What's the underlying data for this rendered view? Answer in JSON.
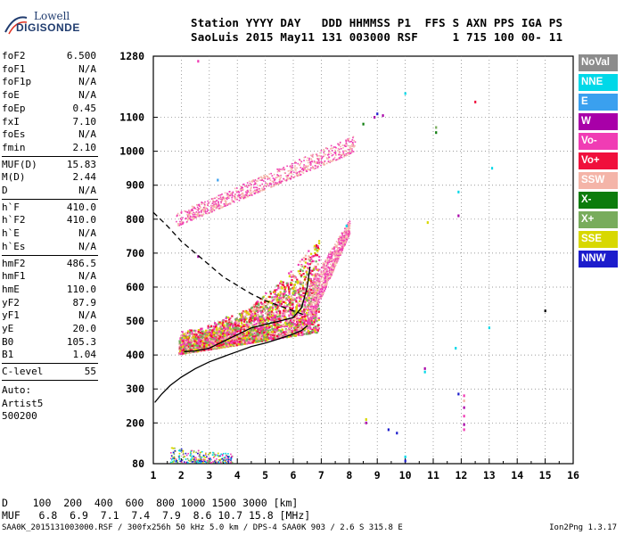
{
  "logo": {
    "line1": "Lowell",
    "line2": "DIGISONDE"
  },
  "header": {
    "line1": "Station YYYY DAY   DDD HHMMSS P1  FFS S AXN PPS IGA PS",
    "line2": "SaoLuis 2015 May11 131 003000 RSF     1 715 100 00- 11"
  },
  "params": [
    {
      "label": "foF2",
      "value": "6.500"
    },
    {
      "label": "foF1",
      "value": "N/A"
    },
    {
      "label": "foF1p",
      "value": "N/A"
    },
    {
      "label": "foE",
      "value": "N/A"
    },
    {
      "label": "foEp",
      "value": "0.45"
    },
    {
      "label": "fxI",
      "value": "7.10"
    },
    {
      "label": "foEs",
      "value": "N/A"
    },
    {
      "label": "fmin",
      "value": "2.10"
    },
    {
      "label": "MUF(D)",
      "value": "15.83"
    },
    {
      "label": "M(D)",
      "value": "2.44"
    },
    {
      "label": "D",
      "value": "N/A"
    },
    {
      "label": "h`F",
      "value": "410.0"
    },
    {
      "label": "h`F2",
      "value": "410.0"
    },
    {
      "label": "h`E",
      "value": "N/A"
    },
    {
      "label": "h`Es",
      "value": "N/A"
    },
    {
      "label": "hmF2",
      "value": "486.5"
    },
    {
      "label": "hmF1",
      "value": "N/A"
    },
    {
      "label": "hmE",
      "value": "110.0"
    },
    {
      "label": "yF2",
      "value": "87.9"
    },
    {
      "label": "yF1",
      "value": "N/A"
    },
    {
      "label": "yE",
      "value": "20.0"
    },
    {
      "label": "B0",
      "value": "105.3"
    },
    {
      "label": "B1",
      "value": "1.04"
    },
    {
      "label": "C-level",
      "value": "55"
    }
  ],
  "auto": {
    "line1": "Auto:",
    "line2": "Artist5",
    "line3": "500200"
  },
  "legend": [
    {
      "label": "NoVal",
      "color": "#8c8c8c"
    },
    {
      "label": "NNE",
      "color": "#00d8e8"
    },
    {
      "label": "E",
      "color": "#3aa0ef"
    },
    {
      "label": "W",
      "color": "#a800a8"
    },
    {
      "label": "Vo-",
      "color": "#f03cb4"
    },
    {
      "label": "Vo+",
      "color": "#f0103c"
    },
    {
      "label": "SSW",
      "color": "#f4b4a8"
    },
    {
      "label": "X-",
      "color": "#0c7c0c"
    },
    {
      "label": "X+",
      "color": "#78ac5c"
    },
    {
      "label": "SSE",
      "color": "#d8d800"
    },
    {
      "label": "NNW",
      "color": "#1c1ccc"
    }
  ],
  "bottom": {
    "d_row": "D    100  200  400  600  800 1000 1500 3000 [km]",
    "muf_row": "MUF   6.8  6.9  7.1  7.4  7.9  8.6 10.7 15.8 [MHz]",
    "footer": "SAA0K_2015131003000.RSF / 300fx256h 50 kHz 5.0 km / DPS-4 SAA0K 903 / 2.6 S 315.8 E",
    "version": "Ion2Png 1.3.17"
  },
  "chart_data": {
    "type": "scatter",
    "title": "",
    "xlabel": "",
    "ylabel": "",
    "xlim": [
      1,
      16
    ],
    "ylim": [
      80,
      1280
    ],
    "xticks": [
      1,
      2,
      3,
      4,
      5,
      6,
      7,
      8,
      9,
      10,
      11,
      12,
      13,
      14,
      15,
      16
    ],
    "yticks": [
      80,
      200,
      300,
      400,
      500,
      600,
      700,
      800,
      900,
      1000,
      1100,
      1280
    ],
    "grid": "dotted",
    "legend_position": "right",
    "series": [
      {
        "legend_label": "profile",
        "color": "#000000",
        "style": "solid",
        "points": [
          [
            1.05,
            260
          ],
          [
            1.3,
            285
          ],
          [
            1.6,
            310
          ],
          [
            2.0,
            335
          ],
          [
            2.5,
            360
          ],
          [
            3.0,
            380
          ],
          [
            3.5,
            395
          ],
          [
            4.0,
            410
          ],
          [
            4.5,
            425
          ],
          [
            5.0,
            435
          ],
          [
            5.5,
            448
          ],
          [
            6.0,
            462
          ],
          [
            6.3,
            472
          ],
          [
            6.5,
            486.5
          ]
        ]
      },
      {
        "legend_label": "muf-line",
        "color": "#000000",
        "style": "dashed",
        "points": [
          [
            1.0,
            820
          ],
          [
            1.5,
            780
          ],
          [
            2.0,
            735
          ],
          [
            2.5,
            700
          ],
          [
            3.0,
            665
          ],
          [
            3.5,
            630
          ],
          [
            4.0,
            605
          ],
          [
            4.5,
            580
          ],
          [
            5.0,
            560
          ],
          [
            5.5,
            545
          ],
          [
            6.0,
            530
          ],
          [
            6.4,
            518
          ]
        ]
      },
      {
        "legend_label": "trace-virtual",
        "color": "#000000",
        "style": "solid",
        "points": [
          [
            2.1,
            410
          ],
          [
            2.5,
            412
          ],
          [
            3.0,
            420
          ],
          [
            3.5,
            440
          ],
          [
            4.0,
            460
          ],
          [
            4.5,
            480
          ],
          [
            5.0,
            490
          ],
          [
            5.5,
            500
          ],
          [
            6.0,
            510
          ],
          [
            6.3,
            540
          ],
          [
            6.5,
            600
          ],
          [
            6.6,
            660
          ]
        ]
      }
    ],
    "echo_regions": [
      {
        "name": "F-trace main",
        "color_mix": [
          "#f03cb4",
          "#f0103c",
          "#d8d800",
          "#78ac5c",
          "#f4b4a8"
        ],
        "x_from": 1.9,
        "x_to": 6.9,
        "h_low_start": 405,
        "h_low_end": 470,
        "h_high_start": 480,
        "h_high_end": 700
      },
      {
        "name": "F-trace upper",
        "color_mix": [
          "#f4b4a8",
          "#f03cb4"
        ],
        "x_from": 6.5,
        "x_to": 8.0,
        "h_low_start": 480,
        "h_high_start": 600,
        "h_low_end": 760,
        "h_high_end": 800
      },
      {
        "name": "2nd hop",
        "color_mix": [
          "#f4b4a8",
          "#f03cb4"
        ],
        "x_from": 1.8,
        "x_to": 8.2,
        "h_low_start": 780,
        "h_low_end": 1000,
        "h_high_start": 820,
        "h_high_end": 1050
      },
      {
        "name": "E-region",
        "color_mix": [
          "#1c1ccc",
          "#d8d800",
          "#f03cb4",
          "#00d8e8",
          "#78ac5c"
        ],
        "x_from": 1.6,
        "x_to": 3.8,
        "h_low_start": 85,
        "h_low_end": 85,
        "h_high_start": 130,
        "h_high_end": 110
      }
    ],
    "isolated_points": [
      {
        "x": 2.6,
        "y": 1265,
        "color": "#f03cb4"
      },
      {
        "x": 3.3,
        "y": 915,
        "color": "#3aa0ef"
      },
      {
        "x": 8.9,
        "y": 1100,
        "color": "#a800a8"
      },
      {
        "x": 9.0,
        "y": 1110,
        "color": "#1c1ccc"
      },
      {
        "x": 9.2,
        "y": 1105,
        "color": "#a800a8"
      },
      {
        "x": 10.0,
        "y": 1170,
        "color": "#00d8e8"
      },
      {
        "x": 11.1,
        "y": 1070,
        "color": "#78ac5c"
      },
      {
        "x": 11.1,
        "y": 1055,
        "color": "#0c7c0c"
      },
      {
        "x": 11.9,
        "y": 880,
        "color": "#00d8e8"
      },
      {
        "x": 11.9,
        "y": 810,
        "color": "#a800a8"
      },
      {
        "x": 12.5,
        "y": 1145,
        "color": "#f0103c"
      },
      {
        "x": 13.1,
        "y": 950,
        "color": "#00d8e8"
      },
      {
        "x": 15.0,
        "y": 530,
        "color": "#000000"
      },
      {
        "x": 13.0,
        "y": 480,
        "color": "#00d8e8"
      },
      {
        "x": 11.8,
        "y": 420,
        "color": "#00d8e8"
      },
      {
        "x": 10.7,
        "y": 360,
        "color": "#a800a8"
      },
      {
        "x": 10.7,
        "y": 350,
        "color": "#00d8e8"
      },
      {
        "x": 11.9,
        "y": 285,
        "color": "#1c1ccc"
      },
      {
        "x": 12.1,
        "y": 280,
        "color": "#f03cb4"
      },
      {
        "x": 12.1,
        "y": 265,
        "color": "#f4b4a8"
      },
      {
        "x": 12.1,
        "y": 245,
        "color": "#a800a8"
      },
      {
        "x": 12.1,
        "y": 220,
        "color": "#f03cb4"
      },
      {
        "x": 12.1,
        "y": 195,
        "color": "#a800a8"
      },
      {
        "x": 12.1,
        "y": 180,
        "color": "#f03cb4"
      },
      {
        "x": 9.4,
        "y": 180,
        "color": "#1c1ccc"
      },
      {
        "x": 9.7,
        "y": 170,
        "color": "#1c1ccc"
      },
      {
        "x": 8.6,
        "y": 210,
        "color": "#d8d800"
      },
      {
        "x": 8.6,
        "y": 200,
        "color": "#a800a8"
      },
      {
        "x": 10.0,
        "y": 100,
        "color": "#00d8e8"
      },
      {
        "x": 10.0,
        "y": 88,
        "color": "#1c1ccc"
      },
      {
        "x": 2.6,
        "y": 690,
        "color": "#a800a8"
      },
      {
        "x": 7.9,
        "y": 780,
        "color": "#00d8e8"
      },
      {
        "x": 10.8,
        "y": 790,
        "color": "#d8d800"
      },
      {
        "x": 8.5,
        "y": 1080,
        "color": "#0c7c0c"
      }
    ]
  }
}
